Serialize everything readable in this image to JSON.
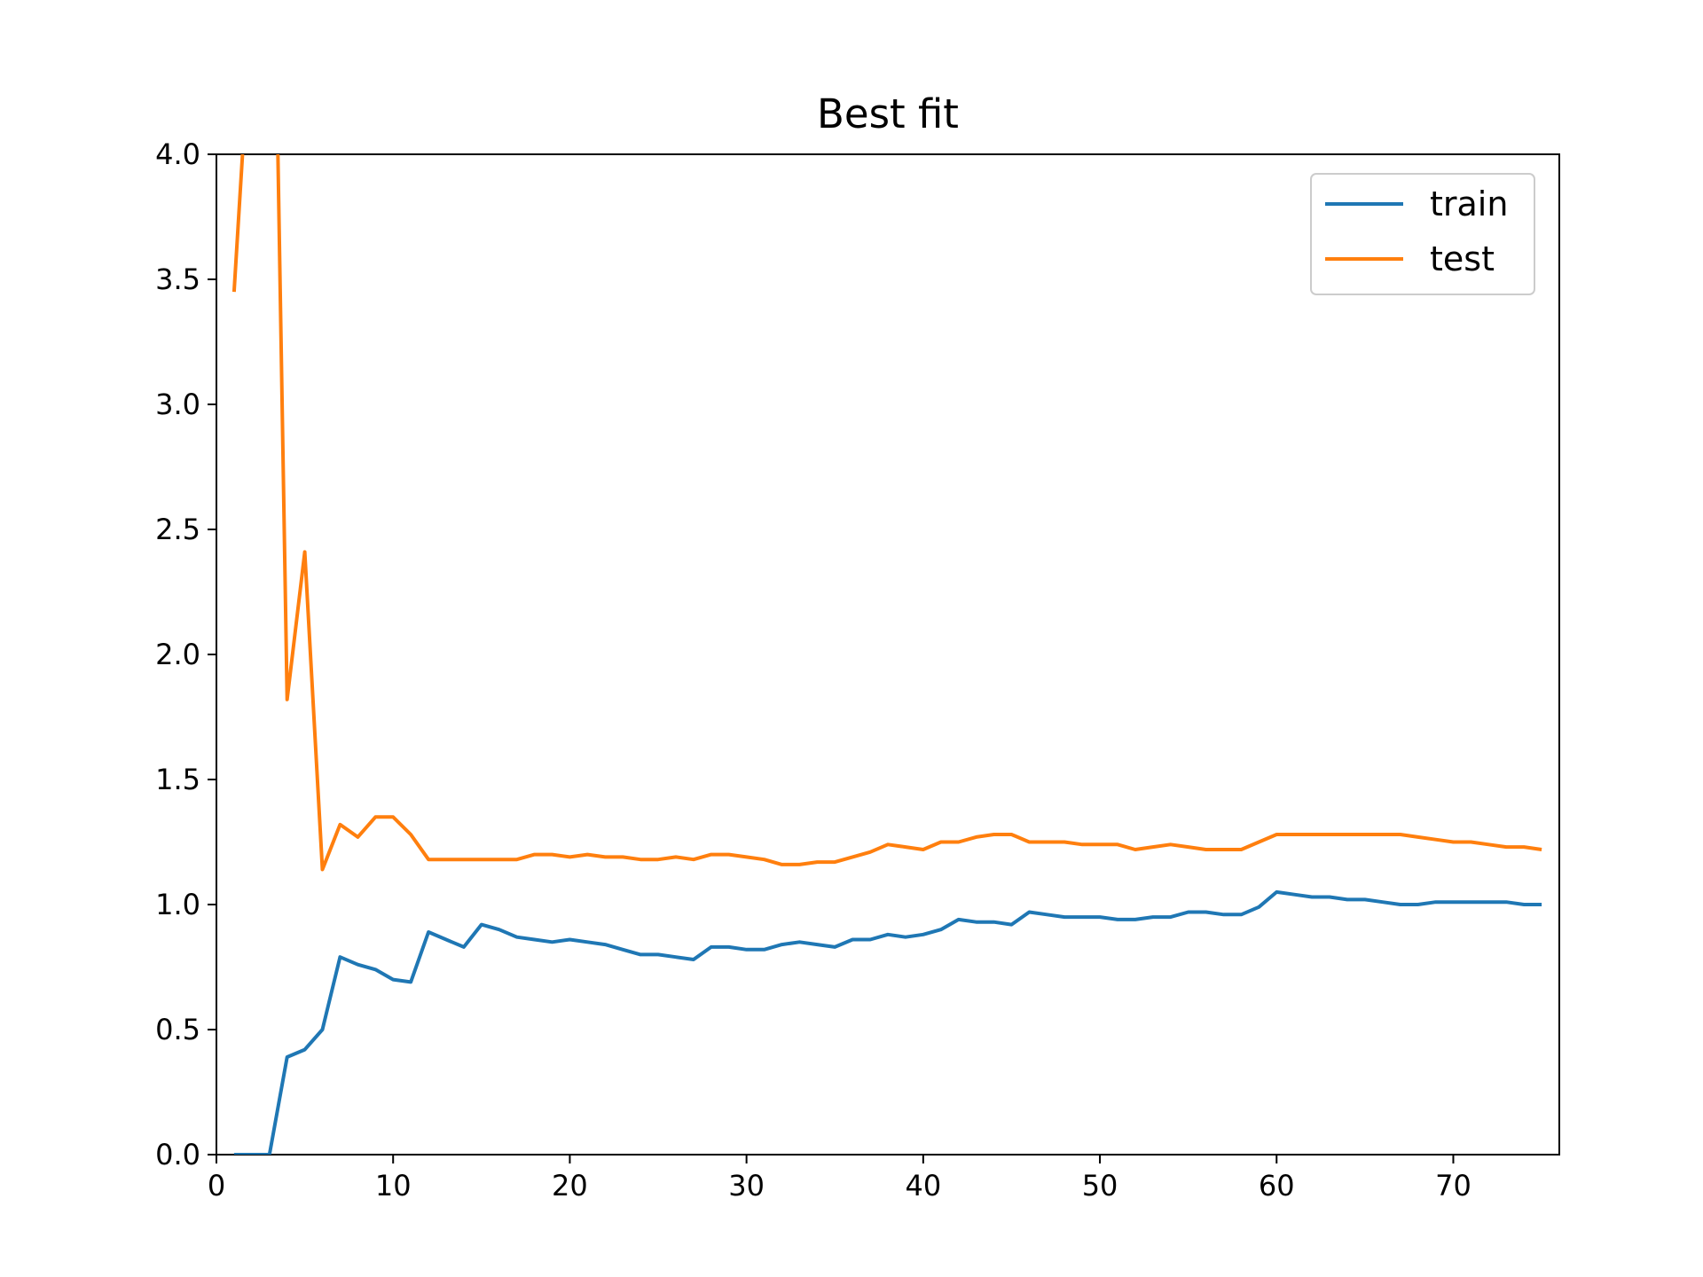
{
  "chart_data": {
    "type": "line",
    "title": "Best fit",
    "xlabel": "",
    "ylabel": "",
    "xlim": [
      0,
      76
    ],
    "ylim": [
      0,
      4
    ],
    "x_ticks": [
      0,
      10,
      20,
      30,
      40,
      50,
      60,
      70
    ],
    "y_ticks": [
      0.0,
      0.5,
      1.0,
      1.5,
      2.0,
      2.5,
      3.0,
      3.5,
      4.0
    ],
    "grid": false,
    "legend_position": "top-right",
    "x": [
      1,
      2,
      3,
      4,
      5,
      6,
      7,
      8,
      9,
      10,
      11,
      12,
      13,
      14,
      15,
      16,
      17,
      18,
      19,
      20,
      21,
      22,
      23,
      24,
      25,
      26,
      27,
      28,
      29,
      30,
      31,
      32,
      33,
      34,
      35,
      36,
      37,
      38,
      39,
      40,
      41,
      42,
      43,
      44,
      45,
      46,
      47,
      48,
      49,
      50,
      51,
      52,
      53,
      54,
      55,
      56,
      57,
      58,
      59,
      60,
      61,
      62,
      63,
      64,
      65,
      66,
      67,
      68,
      69,
      70,
      71,
      72,
      73,
      74,
      75
    ],
    "series": [
      {
        "name": "train",
        "color": "#1f77b4",
        "values": [
          0.0,
          0.0,
          0.0,
          0.39,
          0.42,
          0.5,
          0.79,
          0.76,
          0.74,
          0.7,
          0.69,
          0.89,
          0.86,
          0.83,
          0.92,
          0.9,
          0.87,
          0.86,
          0.85,
          0.86,
          0.85,
          0.84,
          0.82,
          0.8,
          0.8,
          0.79,
          0.78,
          0.83,
          0.83,
          0.82,
          0.82,
          0.84,
          0.85,
          0.84,
          0.83,
          0.86,
          0.86,
          0.88,
          0.87,
          0.88,
          0.9,
          0.94,
          0.93,
          0.93,
          0.92,
          0.97,
          0.96,
          0.95,
          0.95,
          0.95,
          0.94,
          0.94,
          0.95,
          0.95,
          0.97,
          0.97,
          0.96,
          0.96,
          0.99,
          1.05,
          1.04,
          1.03,
          1.03,
          1.02,
          1.02,
          1.01,
          1.0,
          1.0,
          1.01,
          1.01,
          1.01,
          1.01,
          1.01,
          1.0,
          1.0
        ]
      },
      {
        "name": "test",
        "color": "#ff7f0e",
        "values": [
          3.45,
          4.6,
          6.0,
          1.82,
          2.41,
          1.14,
          1.32,
          1.27,
          1.35,
          1.35,
          1.28,
          1.18,
          1.18,
          1.18,
          1.18,
          1.18,
          1.18,
          1.2,
          1.2,
          1.19,
          1.2,
          1.19,
          1.19,
          1.18,
          1.18,
          1.19,
          1.18,
          1.2,
          1.2,
          1.19,
          1.18,
          1.16,
          1.16,
          1.17,
          1.17,
          1.19,
          1.21,
          1.24,
          1.23,
          1.22,
          1.25,
          1.25,
          1.27,
          1.28,
          1.28,
          1.25,
          1.25,
          1.25,
          1.24,
          1.24,
          1.24,
          1.22,
          1.23,
          1.24,
          1.23,
          1.22,
          1.22,
          1.22,
          1.25,
          1.28,
          1.28,
          1.28,
          1.28,
          1.28,
          1.28,
          1.28,
          1.28,
          1.27,
          1.26,
          1.25,
          1.25,
          1.24,
          1.23,
          1.23,
          1.22
        ]
      }
    ]
  }
}
